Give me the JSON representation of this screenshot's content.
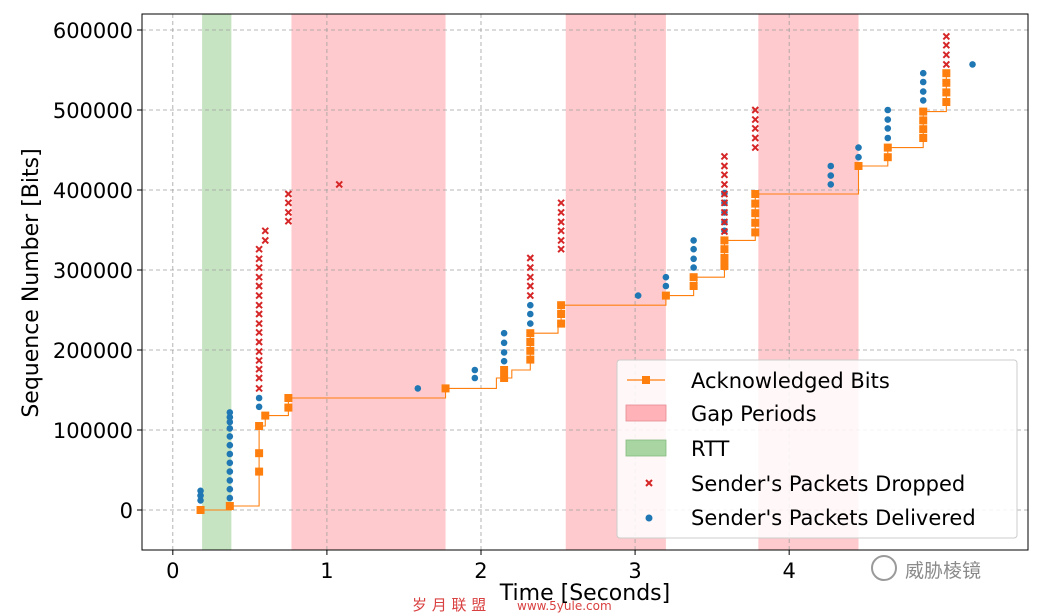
{
  "chart_data": {
    "type": "scatter",
    "xlabel": "Time [Seconds]",
    "ylabel": "Sequence Number [Bits]",
    "xlim": [
      -0.2,
      5.55
    ],
    "ylim": [
      -50000,
      620000
    ],
    "xticks": [
      0,
      1,
      2,
      3,
      4
    ],
    "yticks": [
      0,
      100000,
      200000,
      300000,
      400000,
      500000,
      600000
    ],
    "grid": true,
    "legend_position": "lower-right",
    "rtt_periods": [
      [
        0.19,
        0.38
      ]
    ],
    "gap_periods": [
      [
        0.77,
        1.77
      ],
      [
        2.55,
        3.2
      ],
      [
        3.8,
        4.45
      ]
    ],
    "acked": {
      "name": "Acknowledged Bits",
      "color": "#ff7f0e",
      "steps": [
        [
          0.18,
          0
        ],
        [
          0.38,
          5000
        ],
        [
          0.56,
          48000
        ],
        [
          0.56,
          105000
        ],
        [
          0.6,
          118000
        ],
        [
          0.75,
          128000
        ],
        [
          0.75,
          140000
        ],
        [
          1.77,
          152000
        ],
        [
          2.1,
          165000
        ],
        [
          2.2,
          175000
        ],
        [
          2.32,
          221000
        ],
        [
          2.5,
          233000
        ],
        [
          2.52,
          256000
        ],
        [
          3.2,
          268000
        ],
        [
          3.38,
          280000
        ],
        [
          3.4,
          291000
        ],
        [
          3.58,
          305000
        ],
        [
          3.58,
          337000
        ],
        [
          3.78,
          347000
        ],
        [
          3.78,
          395000
        ],
        [
          4.45,
          430000
        ],
        [
          4.64,
          441000
        ],
        [
          4.64,
          453000
        ],
        [
          4.87,
          465000
        ],
        [
          4.87,
          498000
        ],
        [
          5.02,
          510000
        ],
        [
          5.02,
          546000
        ]
      ],
      "points": [
        [
          0.18,
          0
        ],
        [
          0.37,
          5000
        ],
        [
          0.56,
          48000
        ],
        [
          0.56,
          71000
        ],
        [
          0.56,
          105000
        ],
        [
          0.6,
          118000
        ],
        [
          0.75,
          128000
        ],
        [
          0.75,
          140000
        ],
        [
          1.77,
          152000
        ],
        [
          2.15,
          165000
        ],
        [
          2.15,
          175000
        ],
        [
          2.32,
          188000
        ],
        [
          2.32,
          199000
        ],
        [
          2.32,
          210000
        ],
        [
          2.32,
          221000
        ],
        [
          2.52,
          233000
        ],
        [
          2.52,
          245000
        ],
        [
          2.52,
          256000
        ],
        [
          3.2,
          268000
        ],
        [
          3.38,
          280000
        ],
        [
          3.38,
          291000
        ],
        [
          3.58,
          305000
        ],
        [
          3.58,
          315000
        ],
        [
          3.58,
          326000
        ],
        [
          3.58,
          337000
        ],
        [
          3.78,
          347000
        ],
        [
          3.78,
          359000
        ],
        [
          3.78,
          371000
        ],
        [
          3.78,
          383000
        ],
        [
          3.78,
          395000
        ],
        [
          4.45,
          430000
        ],
        [
          4.64,
          441000
        ],
        [
          4.64,
          453000
        ],
        [
          4.87,
          465000
        ],
        [
          4.87,
          476000
        ],
        [
          4.87,
          487000
        ],
        [
          4.87,
          498000
        ],
        [
          5.02,
          510000
        ],
        [
          5.02,
          522000
        ],
        [
          5.02,
          534000
        ],
        [
          5.02,
          546000
        ]
      ]
    },
    "dropped": {
      "name": "Sender's Packets Dropped",
      "color": "#d62728",
      "points": [
        [
          0.56,
          152000
        ],
        [
          0.56,
          165000
        ],
        [
          0.56,
          176000
        ],
        [
          0.56,
          187000
        ],
        [
          0.56,
          198000
        ],
        [
          0.56,
          210000
        ],
        [
          0.56,
          222000
        ],
        [
          0.56,
          233000
        ],
        [
          0.56,
          245000
        ],
        [
          0.56,
          256000
        ],
        [
          0.56,
          268000
        ],
        [
          0.56,
          280000
        ],
        [
          0.56,
          291000
        ],
        [
          0.56,
          303000
        ],
        [
          0.56,
          314000
        ],
        [
          0.56,
          326000
        ],
        [
          0.6,
          337000
        ],
        [
          0.6,
          349000
        ],
        [
          0.75,
          361000
        ],
        [
          0.75,
          372000
        ],
        [
          0.75,
          384000
        ],
        [
          0.75,
          395000
        ],
        [
          1.08,
          407000
        ],
        [
          2.32,
          268000
        ],
        [
          2.32,
          280000
        ],
        [
          2.32,
          291000
        ],
        [
          2.32,
          303000
        ],
        [
          2.32,
          315000
        ],
        [
          2.52,
          326000
        ],
        [
          2.52,
          337000
        ],
        [
          2.52,
          349000
        ],
        [
          2.52,
          360000
        ],
        [
          2.52,
          372000
        ],
        [
          2.52,
          384000
        ],
        [
          3.58,
          348000
        ],
        [
          3.58,
          360000
        ],
        [
          3.58,
          372000
        ],
        [
          3.58,
          384000
        ],
        [
          3.58,
          395000
        ],
        [
          3.58,
          407000
        ],
        [
          3.58,
          419000
        ],
        [
          3.58,
          430000
        ],
        [
          3.58,
          442000
        ],
        [
          3.78,
          453000
        ],
        [
          3.78,
          465000
        ],
        [
          3.78,
          477000
        ],
        [
          3.78,
          488000
        ],
        [
          3.78,
          500000
        ],
        [
          5.02,
          557000
        ],
        [
          5.02,
          569000
        ],
        [
          5.02,
          581000
        ],
        [
          5.02,
          592000
        ]
      ]
    },
    "delivered": {
      "name": "Sender's Packets Delivered",
      "color": "#1f77b4",
      "points": [
        [
          0.18,
          12000
        ],
        [
          0.18,
          18000
        ],
        [
          0.18,
          24000
        ],
        [
          0.37,
          15000
        ],
        [
          0.37,
          26000
        ],
        [
          0.37,
          37000
        ],
        [
          0.37,
          48000
        ],
        [
          0.37,
          59000
        ],
        [
          0.37,
          70000
        ],
        [
          0.37,
          81000
        ],
        [
          0.37,
          92000
        ],
        [
          0.37,
          102000
        ],
        [
          0.37,
          110000
        ],
        [
          0.37,
          116000
        ],
        [
          0.37,
          122000
        ],
        [
          0.56,
          129000
        ],
        [
          0.56,
          140000
        ],
        [
          1.59,
          152000
        ],
        [
          1.96,
          165000
        ],
        [
          1.96,
          175000
        ],
        [
          2.15,
          186000
        ],
        [
          2.15,
          197000
        ],
        [
          2.15,
          209000
        ],
        [
          2.15,
          221000
        ],
        [
          2.32,
          233000
        ],
        [
          2.32,
          245000
        ],
        [
          2.32,
          256000
        ],
        [
          3.02,
          268000
        ],
        [
          3.2,
          280000
        ],
        [
          3.2,
          291000
        ],
        [
          3.38,
          303000
        ],
        [
          3.38,
          314000
        ],
        [
          3.38,
          326000
        ],
        [
          3.38,
          337000
        ],
        [
          3.58,
          349000
        ],
        [
          3.58,
          360000
        ],
        [
          3.58,
          372000
        ],
        [
          3.58,
          384000
        ],
        [
          3.58,
          396000
        ],
        [
          4.27,
          407000
        ],
        [
          4.27,
          418000
        ],
        [
          4.27,
          430000
        ],
        [
          4.45,
          441000
        ],
        [
          4.45,
          453000
        ],
        [
          4.64,
          465000
        ],
        [
          4.64,
          477000
        ],
        [
          4.64,
          488000
        ],
        [
          4.64,
          500000
        ],
        [
          4.87,
          512000
        ],
        [
          4.87,
          523000
        ],
        [
          4.87,
          535000
        ],
        [
          4.87,
          546000
        ],
        [
          5.19,
          557000
        ]
      ]
    },
    "legend": {
      "acked": "Acknowledged Bits",
      "gap": "Gap Periods",
      "rtt": "RTT",
      "dropped": "Sender's Packets Dropped",
      "delivered": "Sender's Packets Delivered"
    },
    "colors": {
      "gap_fill": "#ffb3b8",
      "rtt_fill": "#a8d5a2",
      "grid": "#a0a0a0"
    }
  },
  "watermarks": {
    "wechat": "威胁棱镜",
    "site_cn": "岁 月 联 盟",
    "site_url": "www.5yule.com"
  }
}
